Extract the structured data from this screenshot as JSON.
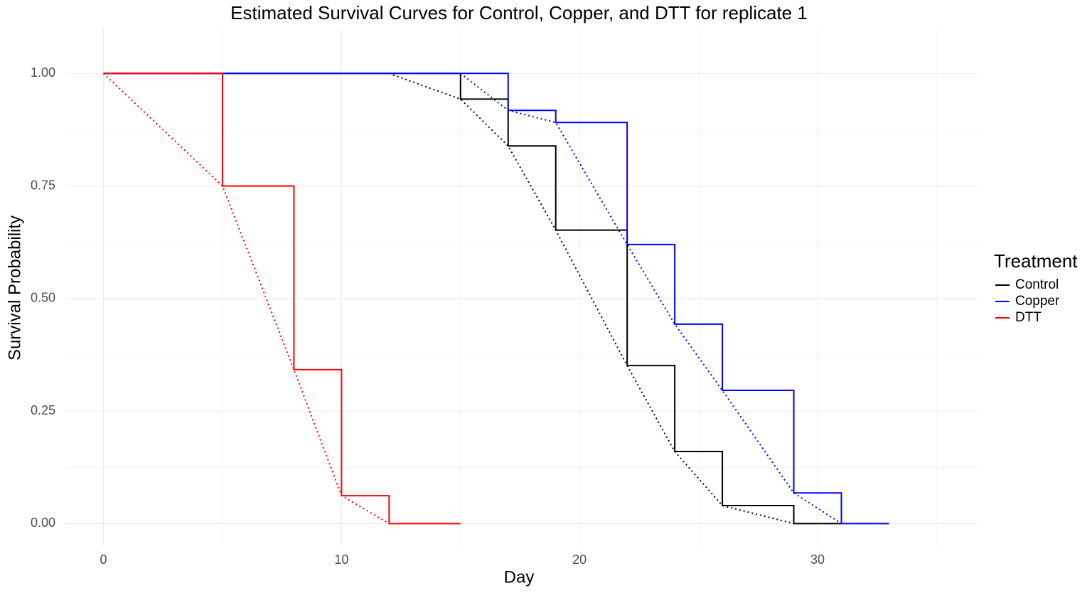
{
  "chart_data": {
    "type": "step",
    "title": "Estimated Survival Curves for Control, Copper, and DTT for replicate 1",
    "x_label": "Day",
    "y_label": "Survival Probability",
    "legend_title": "Treatment",
    "legend_position": "right",
    "grid": true,
    "xlim": [
      -1.6,
      36.75
    ],
    "ylim": [
      -0.05,
      1.1
    ],
    "xticks": [
      0,
      10,
      20,
      30
    ],
    "yticks": [
      {
        "value": 0,
        "label": "0.00"
      },
      {
        "value": 0.25,
        "label": "0.25"
      },
      {
        "value": 0.5,
        "label": "0.50"
      },
      {
        "value": 0.75,
        "label": "0.75"
      },
      {
        "value": 1,
        "label": "1.00"
      }
    ],
    "series": [
      {
        "name": "Control",
        "color": "#000000",
        "x": [
          0,
          15,
          17,
          19,
          22,
          24,
          26,
          29,
          31
        ],
        "values": [
          1,
          0.943,
          0.839,
          0.652,
          0.351,
          0.16,
          0.04,
          0,
          0
        ],
        "fit": {
          "x": [
            12,
            15,
            17,
            19,
            22,
            24,
            26,
            29
          ],
          "values": [
            1,
            0.943,
            0.839,
            0.652,
            0.351,
            0.16,
            0.04,
            0
          ]
        }
      },
      {
        "name": "Copper",
        "color": "#0000ff",
        "x": [
          0,
          17,
          19,
          22,
          24,
          26,
          29,
          31,
          33
        ],
        "values": [
          1,
          0.918,
          0.891,
          0.62,
          0.443,
          0.296,
          0.068,
          0,
          0
        ],
        "fit": {
          "x": [
            15,
            17,
            19,
            22,
            24,
            26,
            29,
            31
          ],
          "values": [
            1,
            0.918,
            0.891,
            0.62,
            0.443,
            0.296,
            0.068,
            0
          ]
        }
      },
      {
        "name": "DTT",
        "color": "#ff0000",
        "x": [
          0,
          5,
          8,
          10,
          12,
          15
        ],
        "values": [
          1,
          0.75,
          0.342,
          0.062,
          0,
          0
        ],
        "fit": {
          "x": [
            0,
            5,
            8,
            10,
            12
          ],
          "values": [
            1,
            0.75,
            0.342,
            0.062,
            0
          ]
        }
      }
    ]
  }
}
